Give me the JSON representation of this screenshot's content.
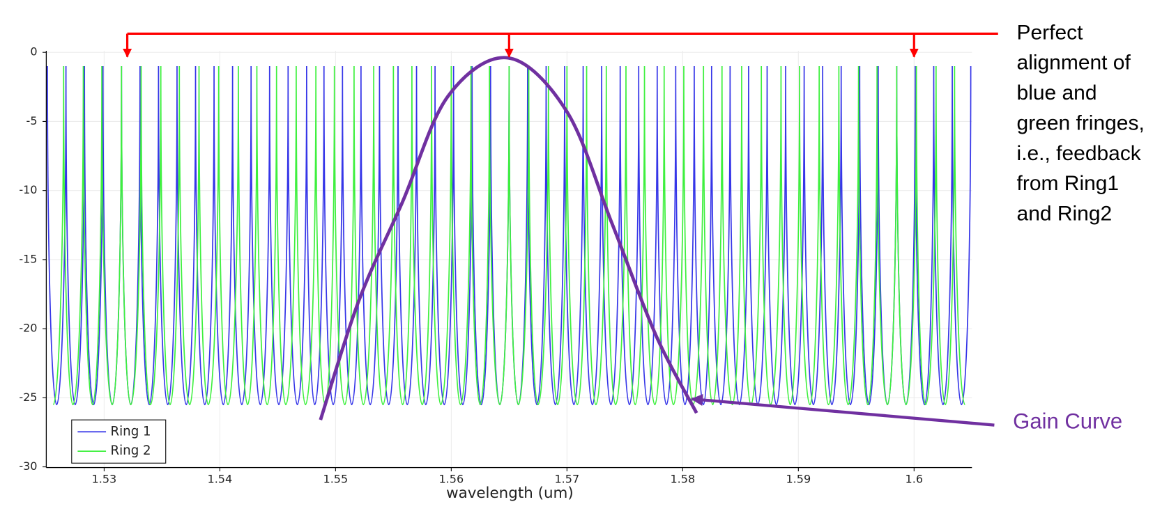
{
  "chart_data": {
    "type": "line",
    "xlabel": "wavelength (um)",
    "xlim": [
      1.525,
      1.605
    ],
    "ylim": [
      -30,
      0
    ],
    "xticks": [
      1.53,
      1.54,
      1.55,
      1.56,
      1.57,
      1.58,
      1.59,
      1.6
    ],
    "yticks": [
      0,
      -5,
      -10,
      -15,
      -20,
      -25,
      -30
    ],
    "grid": true,
    "legend": "lower left",
    "series": [
      {
        "name": "Ring 1",
        "color": "#3636e8",
        "x": [
          1.5251,
          1.5259,
          1.5267,
          1.5275,
          1.5283,
          1.5291,
          1.5299,
          1.5307,
          1.5315,
          1.5323,
          1.5331,
          1.5339,
          1.5347,
          1.5355,
          1.5363,
          1.5371,
          1.5379,
          1.5387,
          1.5395,
          1.5403,
          1.5411,
          1.5419,
          1.5427,
          1.5435,
          1.5443,
          1.5451,
          1.5459,
          1.5467,
          1.5475,
          1.5482,
          1.549,
          1.5498,
          1.5506,
          1.5514,
          1.5522,
          1.553,
          1.5538,
          1.5546,
          1.5554,
          1.5562,
          1.557,
          1.5578,
          1.5586,
          1.5594,
          1.5602,
          1.561,
          1.5618,
          1.5626,
          1.5634,
          1.5642,
          1.565,
          1.5658,
          1.5666,
          1.5674,
          1.5682,
          1.569,
          1.5698,
          1.5706,
          1.5714,
          1.5722,
          1.573,
          1.5738,
          1.5746,
          1.5754,
          1.5762,
          1.577,
          1.5778,
          1.5786,
          1.5794,
          1.5802,
          1.581,
          1.5818,
          1.5825,
          1.5833,
          1.5841,
          1.5849,
          1.5857,
          1.5865,
          1.5873,
          1.5881,
          1.5889,
          1.5897,
          1.5905,
          1.5913,
          1.5921,
          1.5929,
          1.5937,
          1.5945,
          1.5953,
          1.5961,
          1.5969,
          1.5977,
          1.5985,
          1.5993,
          1.6001,
          1.6009,
          1.6017,
          1.6025,
          1.6033,
          1.6041,
          1.6049
        ],
        "values": [
          -1,
          -25.5,
          -1,
          -25.5,
          -1,
          -25.5,
          -1,
          -25.5,
          -1,
          -25.5,
          -1,
          -25.5,
          -1,
          -25.5,
          -1,
          -25.5,
          -1,
          -25.5,
          -1,
          -25.5,
          -1,
          -25.5,
          -1,
          -25.5,
          -1,
          -25.5,
          -1,
          -25.5,
          -1,
          -25.5,
          -1,
          -25.5,
          -1,
          -25.5,
          -1,
          -25.5,
          -1,
          -25.5,
          -1,
          -25.5,
          -1,
          -25.5,
          -1,
          -25.5,
          -1,
          -25.5,
          -1,
          -25.5,
          -1,
          -25.5,
          -1,
          -25.5,
          -1,
          -25.5,
          -1,
          -25.5,
          -1,
          -25.5,
          -1,
          -25.5,
          -1,
          -25.5,
          -1,
          -25.5,
          -1,
          -25.5,
          -1,
          -25.5,
          -1,
          -25.5,
          -1,
          -25.5,
          -1,
          -25.5,
          -1,
          -25.5,
          -1,
          -25.5,
          -1,
          -25.5,
          -1,
          -25.5,
          -1,
          -25.5,
          -1,
          -25.5,
          -1,
          -25.5,
          -1,
          -25.5,
          -1,
          -25.5,
          -1,
          -25.5,
          -1,
          -25.5,
          -1,
          -25.5,
          -1,
          -25.5,
          -1
        ]
      },
      {
        "name": "Ring 2",
        "color": "#3ef03e",
        "x": [
          1.5256,
          1.5265,
          1.5273,
          1.5282,
          1.529,
          1.5298,
          1.5307,
          1.5315,
          1.5323,
          1.5332,
          1.534,
          1.5349,
          1.5357,
          1.5365,
          1.5374,
          1.5382,
          1.539,
          1.5399,
          1.5407,
          1.5416,
          1.5424,
          1.5432,
          1.5441,
          1.5449,
          1.5457,
          1.5466,
          1.5474,
          1.5483,
          1.5491,
          1.5499,
          1.5508,
          1.5516,
          1.5524,
          1.5533,
          1.5541,
          1.555,
          1.5558,
          1.5566,
          1.5575,
          1.5583,
          1.5591,
          1.56,
          1.5608,
          1.5617,
          1.5625,
          1.5633,
          1.5642,
          1.565,
          1.5658,
          1.5667,
          1.5675,
          1.5684,
          1.5692,
          1.57,
          1.5709,
          1.5717,
          1.5725,
          1.5734,
          1.5742,
          1.5751,
          1.5759,
          1.5767,
          1.5776,
          1.5784,
          1.5792,
          1.5801,
          1.5809,
          1.5818,
          1.5826,
          1.5834,
          1.5843,
          1.5851,
          1.5859,
          1.5868,
          1.5876,
          1.5885,
          1.5893,
          1.5901,
          1.591,
          1.5918,
          1.5926,
          1.5935,
          1.5943,
          1.5952,
          1.596,
          1.5968,
          1.5977,
          1.5985,
          1.5993,
          1.6002,
          1.601,
          1.6019,
          1.6027,
          1.6035,
          1.6044
        ],
        "values": [
          -25.5,
          -1,
          -25.5,
          -1,
          -25.5,
          -1,
          -25.5,
          -1,
          -25.5,
          -1,
          -25.5,
          -1,
          -25.5,
          -1,
          -25.5,
          -1,
          -25.5,
          -1,
          -25.5,
          -1,
          -25.5,
          -1,
          -25.5,
          -1,
          -25.5,
          -1,
          -25.5,
          -1,
          -25.5,
          -1,
          -25.5,
          -1,
          -25.5,
          -1,
          -25.5,
          -1,
          -25.5,
          -1,
          -25.5,
          -1,
          -25.5,
          -1,
          -25.5,
          -1,
          -25.5,
          -1,
          -25.5,
          -1,
          -25.5,
          -1,
          -25.5,
          -1,
          -25.5,
          -1,
          -25.5,
          -1,
          -25.5,
          -1,
          -25.5,
          -1,
          -25.5,
          -1,
          -25.5,
          -1,
          -25.5,
          -1,
          -25.5,
          -1,
          -25.5,
          -1,
          -25.5,
          -1,
          -25.5,
          -1,
          -25.5,
          -1,
          -25.5,
          -1,
          -25.5,
          -1,
          -25.5,
          -1,
          -25.5,
          -1,
          -25.5,
          -1,
          -25.5,
          -1,
          -25.5,
          -1,
          -25.5,
          -1,
          -25.5,
          -1,
          -25.5
        ]
      }
    ],
    "gain_curve": {
      "label": "Gain Curve",
      "color": "#7030a0",
      "x": [
        1.5487,
        1.552,
        1.5558,
        1.5597,
        1.5649,
        1.57,
        1.5739,
        1.5777,
        1.5812
      ],
      "values": [
        -26.6,
        -18,
        -10.8,
        -3.2,
        -0.4,
        -4.3,
        -12.4,
        -20.5,
        -26.1
      ]
    },
    "alignment": {
      "color": "#ff0000",
      "x": [
        1.532,
        1.565,
        1.6
      ],
      "text": [
        "Perfect",
        "alignment of",
        "blue and",
        "green fringes,",
        "i.e.,  feedback",
        "from Ring1",
        "and Ring2"
      ]
    }
  }
}
